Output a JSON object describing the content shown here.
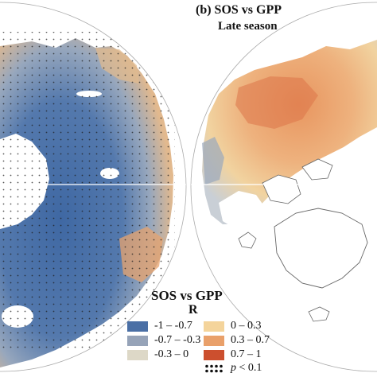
{
  "panel": {
    "title": "(b) SOS vs GPP",
    "subtitle": "Late season"
  },
  "legend": {
    "title": "SOS vs GPP",
    "subtitle": "R",
    "items": [
      {
        "label": "-1 – -0.7",
        "color": "#4a6fa5"
      },
      {
        "label": "-0.7 – -0.3",
        "color": "#96a3b8"
      },
      {
        "label": "-0.3 – 0",
        "color": "#ddd8c7"
      },
      {
        "label": "0 – 0.3",
        "color": "#f4d49b"
      },
      {
        "label": "0.3 – 0.7",
        "color": "#e9a06a"
      },
      {
        "label": "0.7 – 1",
        "color": "#cc4f2e"
      }
    ],
    "significance": {
      "symbol_label": "p",
      "text": " < 0.1"
    }
  },
  "colors": {
    "ocean": "#ffffff",
    "ice": "#ffffff",
    "outline": "#555555",
    "border": "#999999"
  }
}
